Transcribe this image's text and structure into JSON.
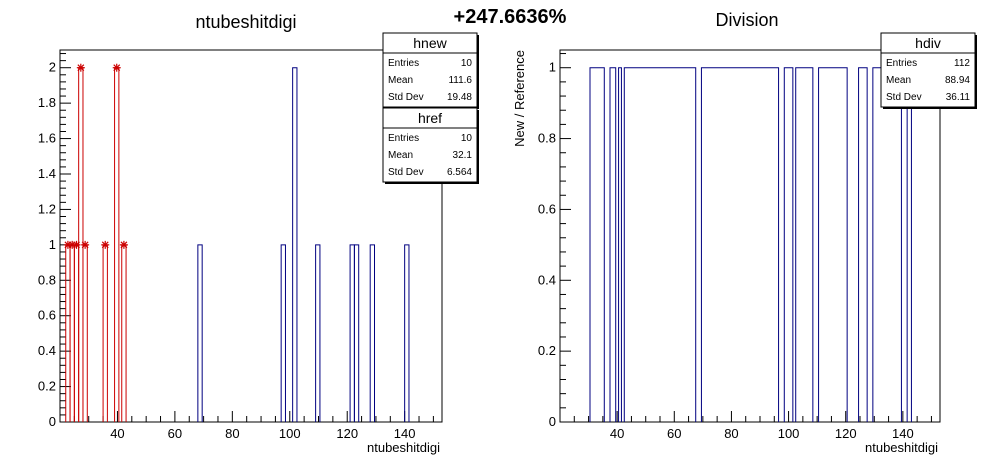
{
  "page": {
    "ratio_text": "+247.6636%"
  },
  "chart_data": [
    {
      "type": "histogram",
      "title": "ntubeshitdigi",
      "xlabel": "ntubeshitdigi",
      "ylabel": "",
      "xlim": [
        20,
        153
      ],
      "ylim": [
        0,
        2.1
      ],
      "x_ticks": [
        40,
        60,
        80,
        100,
        120,
        140
      ],
      "y_ticks": [
        0,
        0.2,
        0.4,
        0.6,
        0.8,
        1,
        1.2,
        1.4,
        1.6,
        1.8,
        2
      ],
      "y_tick_labels": [
        "0",
        "0.2",
        "0.4",
        "0.6",
        "0.8",
        "1",
        "1.2",
        "1.4",
        "1.6",
        "1.8",
        "2"
      ],
      "grid": false,
      "series": [
        {
          "name": "hnew",
          "color": "#000080",
          "style": "step",
          "bins": [
            {
              "x0": 68,
              "x1": 69.5,
              "y": 1
            },
            {
              "x0": 97,
              "x1": 98.5,
              "y": 1
            },
            {
              "x0": 101,
              "x1": 102.5,
              "y": 2
            },
            {
              "x0": 109,
              "x1": 110.5,
              "y": 1
            },
            {
              "x0": 121,
              "x1": 122.5,
              "y": 1
            },
            {
              "x0": 122.5,
              "x1": 124,
              "y": 1
            },
            {
              "x0": 128,
              "x1": 129.5,
              "y": 1
            },
            {
              "x0": 140,
              "x1": 141.5,
              "y": 1
            }
          ]
        },
        {
          "name": "href",
          "color": "#cc0000",
          "style": "step-markers",
          "marker": "star",
          "bins": [
            {
              "x0": 22,
              "x1": 23.5,
              "y": 1
            },
            {
              "x0": 23.5,
              "x1": 25,
              "y": 1
            },
            {
              "x0": 25,
              "x1": 26.5,
              "y": 1
            },
            {
              "x0": 26.5,
              "x1": 28,
              "y": 2
            },
            {
              "x0": 28,
              "x1": 29.5,
              "y": 1
            },
            {
              "x0": 35,
              "x1": 36.5,
              "y": 1
            },
            {
              "x0": 39,
              "x1": 40.5,
              "y": 2
            },
            {
              "x0": 41.5,
              "x1": 43,
              "y": 1
            }
          ]
        }
      ],
      "stats": [
        {
          "name": "hnew",
          "rows": [
            {
              "label": "Entries",
              "value": "10"
            },
            {
              "label": "Mean",
              "value": "111.6"
            },
            {
              "label": "Std Dev",
              "value": "19.48"
            }
          ]
        },
        {
          "name": "href",
          "rows": [
            {
              "label": "Entries",
              "value": "10"
            },
            {
              "label": "Mean",
              "value": "32.1"
            },
            {
              "label": "Std Dev",
              "value": "6.564"
            }
          ]
        }
      ]
    },
    {
      "type": "histogram",
      "title": "Division",
      "xlabel": "ntubeshitdigi",
      "ylabel": "New / Reference",
      "xlim": [
        20,
        153
      ],
      "ylim": [
        0,
        1.05
      ],
      "x_ticks": [
        40,
        60,
        80,
        100,
        120,
        140
      ],
      "y_ticks": [
        0,
        0.2,
        0.4,
        0.6,
        0.8,
        1
      ],
      "y_tick_labels": [
        "0",
        "0.2",
        "0.4",
        "0.6",
        "0.8",
        "1"
      ],
      "grid": false,
      "series": [
        {
          "name": "hdiv",
          "color": "#000080",
          "style": "step",
          "bins": [
            {
              "x0": 30.5,
              "x1": 35.5,
              "y": 1
            },
            {
              "x0": 37.5,
              "x1": 39.5,
              "y": 1
            },
            {
              "x0": 40.5,
              "x1": 41.5,
              "y": 1
            },
            {
              "x0": 42.5,
              "x1": 67.5,
              "y": 1
            },
            {
              "x0": 69.5,
              "x1": 96.5,
              "y": 1
            },
            {
              "x0": 98.5,
              "x1": 101.5,
              "y": 1
            },
            {
              "x0": 102.5,
              "x1": 108.5,
              "y": 1
            },
            {
              "x0": 110.5,
              "x1": 120.5,
              "y": 1
            },
            {
              "x0": 124.5,
              "x1": 127.5,
              "y": 1
            },
            {
              "x0": 129.5,
              "x1": 139.5,
              "y": 1
            },
            {
              "x0": 141.5,
              "x1": 143,
              "y": 1
            }
          ]
        }
      ],
      "stats": [
        {
          "name": "hdiv",
          "rows": [
            {
              "label": "Entries",
              "value": "112"
            },
            {
              "label": "Mean",
              "value": "88.94"
            },
            {
              "label": "Std Dev",
              "value": "36.11"
            }
          ]
        }
      ]
    }
  ]
}
